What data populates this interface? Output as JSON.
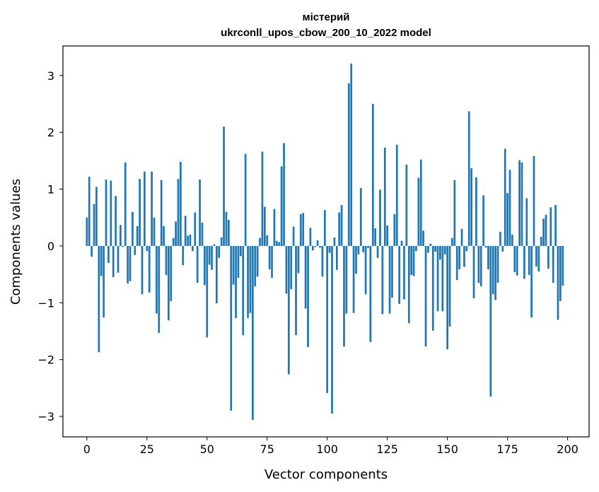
{
  "chart_data": {
    "type": "bar",
    "title_line1": "містерий",
    "title_line2": "ukrconll_upos_cbow_200_10_2022 model",
    "xlabel": "Vector components",
    "ylabel": "Components values",
    "xlim": [
      -9.95,
      208.95
    ],
    "ylim": [
      -3.36,
      3.52
    ],
    "xticks": [
      0,
      25,
      50,
      75,
      100,
      125,
      150,
      175,
      200
    ],
    "yticks": [
      -3,
      -2,
      -1,
      0,
      1,
      2,
      3
    ],
    "bar_color": "#1f77b4",
    "grid": false,
    "legend": "none",
    "values": [
      0.5,
      1.22,
      -0.19,
      0.74,
      1.04,
      -1.87,
      -0.53,
      -1.26,
      1.17,
      -0.3,
      1.15,
      -0.55,
      0.88,
      -0.47,
      0.37,
      -0.02,
      1.47,
      -0.66,
      -0.62,
      0.6,
      -0.16,
      0.35,
      1.18,
      -0.85,
      1.31,
      -0.09,
      -0.82,
      1.31,
      0.5,
      -1.19,
      -1.53,
      1.16,
      0.35,
      -0.51,
      -1.31,
      -0.97,
      0.14,
      0.43,
      1.18,
      1.48,
      -0.34,
      0.53,
      0.18,
      0.2,
      -0.09,
      0.59,
      -0.65,
      1.17,
      0.41,
      -0.69,
      -1.61,
      -0.33,
      -0.42,
      0.03,
      -1.01,
      -0.21,
      0.15,
      2.1,
      0.6,
      0.46,
      -2.9,
      -0.68,
      -1.27,
      -0.56,
      -0.18,
      -1.57,
      1.62,
      -1.27,
      -1.18,
      -3.06,
      -0.71,
      -0.54,
      0.14,
      1.66,
      0.69,
      0.19,
      -0.41,
      -0.56,
      0.65,
      0.09,
      0.07,
      1.4,
      1.81,
      -0.84,
      -2.26,
      -0.76,
      0.34,
      -1.57,
      -0.48,
      0.56,
      0.58,
      -1.1,
      -1.78,
      0.32,
      -0.08,
      -0.02,
      0.1,
      -0.03,
      -0.54,
      0.63,
      -2.59,
      -0.12,
      -2.95,
      0.15,
      -0.42,
      0.59,
      0.72,
      -1.77,
      -1.19,
      2.86,
      3.21,
      -1.18,
      -0.49,
      -0.15,
      1.02,
      -0.11,
      -0.85,
      -0.04,
      -1.69,
      2.5,
      0.31,
      -0.21,
      0.99,
      -1.2,
      1.73,
      0.36,
      -1.19,
      -0.91,
      0.56,
      1.78,
      -1.02,
      0.09,
      -0.94,
      1.43,
      -1.36,
      -0.51,
      -0.53,
      -0.09,
      1.2,
      1.52,
      0.27,
      -1.77,
      -0.12,
      0.04,
      -1.49,
      -0.1,
      -1.15,
      -0.24,
      -1.15,
      -0.15,
      -1.82,
      -1.42,
      0.14,
      1.16,
      -0.6,
      -0.41,
      0.3,
      -0.37,
      -0.09,
      2.37,
      1.37,
      -0.92,
      1.21,
      -0.65,
      -0.71,
      0.89,
      -0.03,
      -0.41,
      -2.65,
      -0.85,
      -0.95,
      -0.65,
      0.25,
      -0.1,
      1.71,
      0.93,
      1.34,
      0.2,
      -0.46,
      -0.52,
      1.51,
      1.47,
      -0.58,
      0.84,
      -0.51,
      -1.26,
      1.58,
      -0.36,
      -0.45,
      0.16,
      0.48,
      0.55,
      -0.4,
      0.68,
      -0.65,
      0.72,
      -1.3,
      -0.97,
      -0.7
    ]
  }
}
